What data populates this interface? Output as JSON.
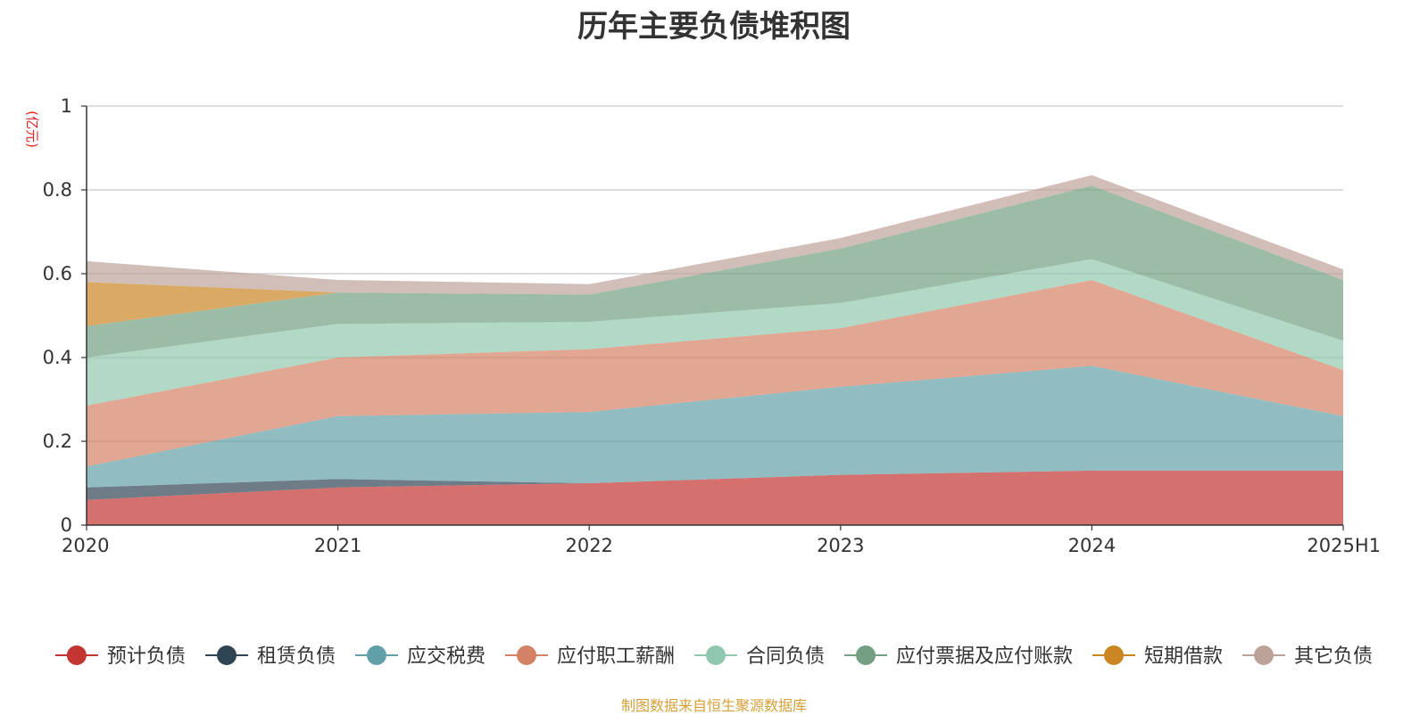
{
  "chart_data": {
    "type": "area",
    "stacked": true,
    "title": "历年主要负债堆积图",
    "ylabel": "(亿元)",
    "xlabel": "",
    "ylim": [
      0,
      1
    ],
    "yticks": [
      "0",
      "0.2",
      "0.4",
      "0.6",
      "0.8",
      "1"
    ],
    "categories": [
      "2020",
      "2021",
      "2022",
      "2023",
      "2024",
      "2025H1"
    ],
    "grid": true,
    "legend_position": "bottom",
    "series": [
      {
        "name": "预计负债",
        "color": "#c23531",
        "values": [
          0.06,
          0.09,
          0.1,
          0.12,
          0.13,
          0.13
        ]
      },
      {
        "name": "租赁负债",
        "color": "#2f4554",
        "values": [
          0.03,
          0.02,
          0.0,
          0.0,
          0.0,
          0.0
        ]
      },
      {
        "name": "应交税费",
        "color": "#61a0a8",
        "values": [
          0.05,
          0.15,
          0.17,
          0.21,
          0.25,
          0.13
        ]
      },
      {
        "name": "应付职工薪酬",
        "color": "#d48265",
        "values": [
          0.145,
          0.14,
          0.15,
          0.14,
          0.205,
          0.11
        ]
      },
      {
        "name": "合同负债",
        "color": "#91c7ae",
        "values": [
          0.115,
          0.08,
          0.065,
          0.06,
          0.05,
          0.07
        ]
      },
      {
        "name": "应付票据及应付账款",
        "color": "#749f83",
        "values": [
          0.075,
          0.075,
          0.065,
          0.13,
          0.175,
          0.145
        ]
      },
      {
        "name": "短期借款",
        "color": "#ca8622",
        "values": [
          0.105,
          0.0,
          0.0,
          0.0,
          0.0,
          0.0
        ]
      },
      {
        "name": "其它负债",
        "color": "#bda29a",
        "values": [
          0.05,
          0.03,
          0.025,
          0.025,
          0.025,
          0.025
        ]
      }
    ]
  },
  "footer": {
    "source": "制图数据来自恒生聚源数据库"
  }
}
